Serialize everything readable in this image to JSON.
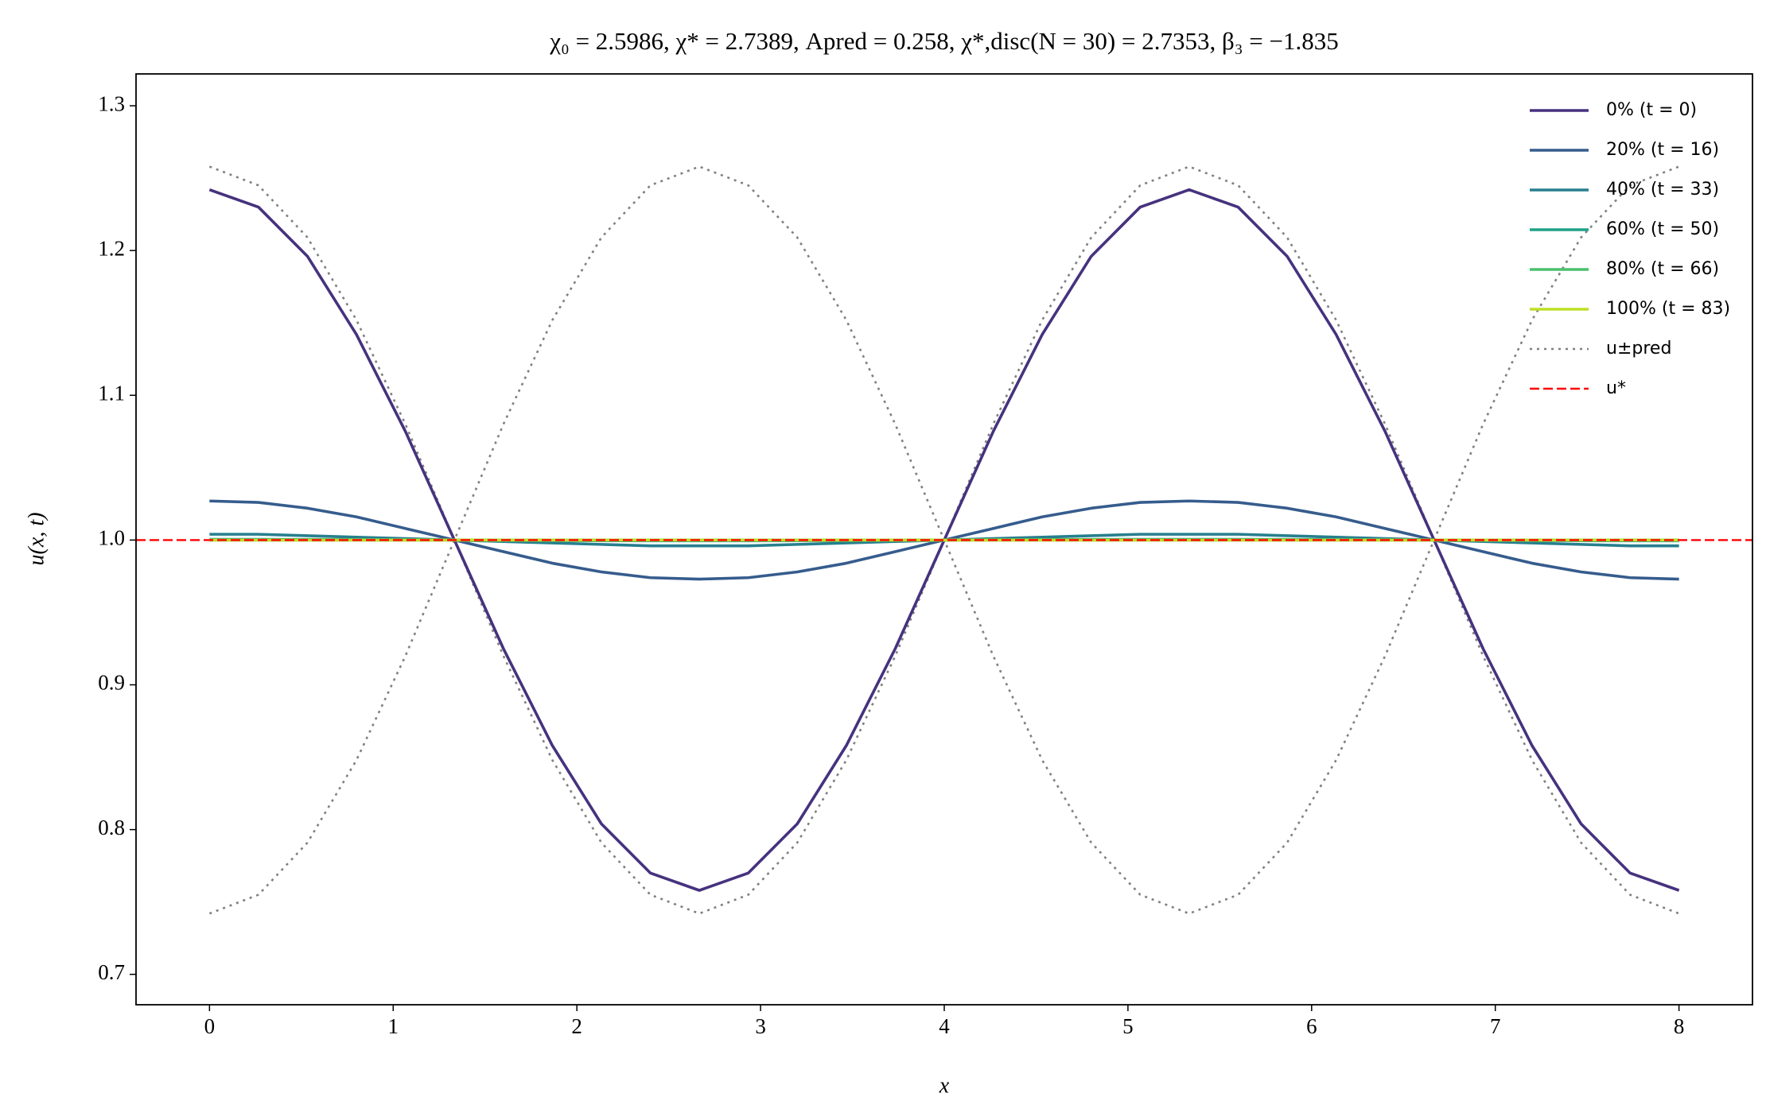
{
  "chart_data": {
    "type": "line",
    "title": "χ₀ = 2.5986,  χ* = 2.7389,  Apred = 0.258,  χ*,disc(N = 30) = 2.7353,  β₃ = −1.835",
    "x_label": "x",
    "y_label": "u(x, t)",
    "x": [
      0,
      0.2667,
      0.5333,
      0.8,
      1.0667,
      1.3333,
      1.6,
      1.8667,
      2.1333,
      2.4,
      2.6667,
      2.9333,
      3.2,
      3.4667,
      3.7333,
      4,
      4.2667,
      4.5333,
      4.8,
      5.0667,
      5.3333,
      5.6,
      5.8667,
      6.1333,
      6.4,
      6.6667,
      6.9333,
      7.2,
      7.4667,
      7.7333,
      8
    ],
    "series": [
      {
        "name": "u±pred",
        "color": "#808080",
        "style": "dotted",
        "values": [
          1.258,
          1.245,
          1.209,
          1.152,
          1.08,
          1.0,
          0.92,
          0.848,
          0.791,
          0.755,
          0.742,
          0.755,
          0.791,
          0.848,
          0.92,
          1.0,
          1.08,
          1.152,
          1.209,
          1.245,
          1.258,
          1.245,
          1.209,
          1.152,
          1.08,
          1.0,
          0.92,
          0.848,
          0.791,
          0.755,
          0.742
        ]
      },
      {
        "name": "u±pred",
        "color": "#808080",
        "style": "dotted",
        "values": [
          0.742,
          0.755,
          0.791,
          0.848,
          0.92,
          1.0,
          1.08,
          1.152,
          1.209,
          1.245,
          1.258,
          1.245,
          1.209,
          1.152,
          1.08,
          1.0,
          0.92,
          0.848,
          0.791,
          0.755,
          0.742,
          0.755,
          0.791,
          0.848,
          0.92,
          1.0,
          1.08,
          1.152,
          1.209,
          1.245,
          1.258
        ]
      },
      {
        "name": "0% (t = 0)",
        "color": "#46327e",
        "style": "solid",
        "values": [
          1.242,
          1.23,
          1.196,
          1.142,
          1.075,
          1.0,
          0.925,
          0.858,
          0.804,
          0.77,
          0.758,
          0.77,
          0.804,
          0.858,
          0.925,
          1.0,
          1.075,
          1.142,
          1.196,
          1.23,
          1.242,
          1.23,
          1.196,
          1.142,
          1.075,
          1.0,
          0.925,
          0.858,
          0.804,
          0.77,
          0.758
        ]
      },
      {
        "name": "20% (t = 16)",
        "color": "#365c8d",
        "style": "solid",
        "values": [
          1.027,
          1.026,
          1.022,
          1.016,
          1.008,
          1.0,
          0.992,
          0.984,
          0.978,
          0.974,
          0.973,
          0.974,
          0.978,
          0.984,
          0.992,
          1.0,
          1.008,
          1.016,
          1.022,
          1.026,
          1.027,
          1.026,
          1.022,
          1.016,
          1.008,
          1.0,
          0.992,
          0.984,
          0.978,
          0.974,
          0.973
        ]
      },
      {
        "name": "40% (t = 33)",
        "color": "#277f8e",
        "style": "solid",
        "values": [
          1.004,
          1.004,
          1.003,
          1.002,
          1.001,
          1.0,
          0.999,
          0.998,
          0.997,
          0.996,
          0.996,
          0.996,
          0.997,
          0.998,
          0.999,
          1.0,
          1.001,
          1.002,
          1.003,
          1.004,
          1.004,
          1.004,
          1.003,
          1.002,
          1.001,
          1.0,
          0.999,
          0.998,
          0.997,
          0.996,
          0.996
        ]
      },
      {
        "name": "60% (t = 50)",
        "color": "#1fa187",
        "style": "solid",
        "values": [
          1.0005,
          1.0005,
          1.0004,
          1.0003,
          1.0002,
          1.0,
          0.9998,
          0.9997,
          0.9996,
          0.9995,
          0.9995,
          0.9995,
          0.9996,
          0.9997,
          0.9998,
          1.0,
          1.0002,
          1.0003,
          1.0004,
          1.0005,
          1.0005,
          1.0005,
          1.0004,
          1.0003,
          1.0002,
          1.0,
          0.9998,
          0.9997,
          0.9996,
          0.9995,
          0.9995
        ]
      },
      {
        "name": "80% (t = 66)",
        "color": "#4ac16d",
        "style": "solid",
        "values": [
          1,
          1,
          1,
          1,
          1,
          1,
          1,
          1,
          1,
          1,
          1,
          1,
          1,
          1,
          1,
          1,
          1,
          1,
          1,
          1,
          1,
          1,
          1,
          1,
          1,
          1,
          1,
          1,
          1,
          1,
          1
        ]
      },
      {
        "name": "100% (t = 83)",
        "color": "#bddf26",
        "style": "solid",
        "values": [
          1,
          1,
          1,
          1,
          1,
          1,
          1,
          1,
          1,
          1,
          1,
          1,
          1,
          1,
          1,
          1,
          1,
          1,
          1,
          1,
          1,
          1,
          1,
          1,
          1,
          1,
          1,
          1,
          1,
          1,
          1
        ]
      }
    ],
    "hline": {
      "name": "u*",
      "value": 1.0,
      "color": "#ff0000",
      "style": "dashed"
    },
    "xlim": [
      -0.4,
      8.4
    ],
    "ylim": [
      0.679,
      1.322
    ],
    "xticks": [
      0,
      1,
      2,
      3,
      4,
      5,
      6,
      7,
      8
    ],
    "yticks": [
      {
        "value": 0.7,
        "label": "0.7"
      },
      {
        "value": 0.8,
        "label": "0.8"
      },
      {
        "value": 0.9,
        "label": "0.9"
      },
      {
        "value": 1.0,
        "label": "1.0"
      },
      {
        "value": 1.1,
        "label": "1.1"
      },
      {
        "value": 1.2,
        "label": "1.2"
      },
      {
        "value": 1.3,
        "label": "1.3"
      }
    ],
    "legend": "upper right",
    "grid": false
  }
}
